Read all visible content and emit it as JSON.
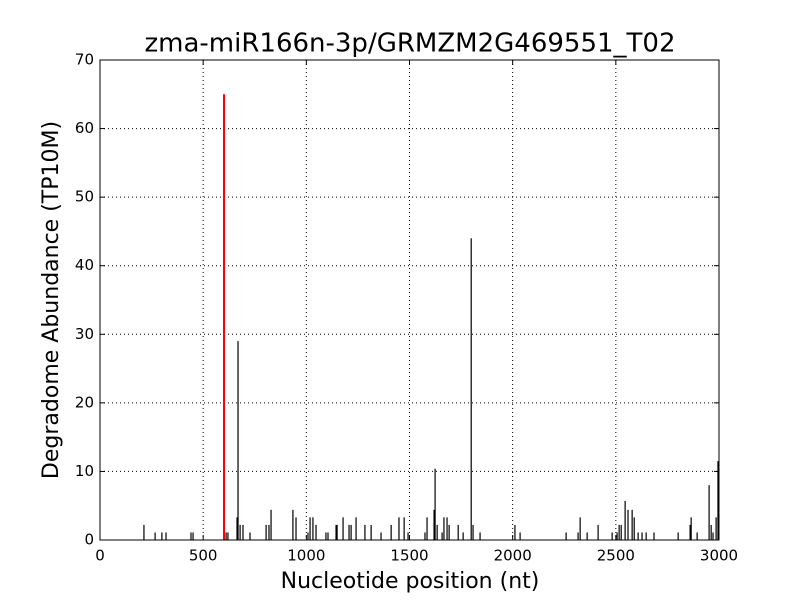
{
  "chart_data": {
    "type": "stem",
    "title": "zma-miR166n-3p/GRMZM2G469551_T02",
    "xlabel": "Nucleotide position (nt)",
    "ylabel": "Degradome Abundance (TP10M)",
    "xlim": [
      0,
      3000
    ],
    "xticks": [
      0,
      500,
      1000,
      1500,
      2000,
      2500,
      3000
    ],
    "ylim": [
      0,
      70
    ],
    "yticks": [
      0,
      10,
      20,
      30,
      40,
      50,
      60,
      70
    ],
    "grid": true,
    "series": [
      {
        "color": "#000000",
        "x": [
          213,
          267,
          300,
          320,
          441,
          451,
          611,
          620,
          664,
          669,
          679,
          693,
          727,
          805,
          819,
          829,
          935,
          950,
          1008,
          1018,
          1032,
          1047,
          1095,
          1105,
          1144,
          1149,
          1178,
          1207,
          1217,
          1241,
          1284,
          1314,
          1362,
          1411,
          1449,
          1474,
          1493,
          1575,
          1585,
          1619,
          1624,
          1634,
          1658,
          1667,
          1682,
          1692,
          1736,
          1760,
          1799,
          1808,
          1842,
          2011,
          2036,
          2259,
          2317,
          2327,
          2361,
          2414,
          2482,
          2506,
          2516,
          2526,
          2545,
          2559,
          2579,
          2589,
          2608,
          2627,
          2647,
          2685,
          2802,
          2860,
          2865,
          2894,
          2952,
          2962,
          2971,
          2986,
          2995
        ],
        "values": [
          2.2,
          1.1,
          1.1,
          1.1,
          1.1,
          1.1,
          1.1,
          1.1,
          3.3,
          29,
          2.2,
          2.2,
          1.1,
          2.2,
          2.2,
          4.4,
          4.4,
          3.3,
          1.1,
          3.3,
          3.3,
          2.2,
          1.1,
          1.1,
          2.2,
          2.2,
          3.3,
          2.2,
          2.2,
          3.3,
          2.2,
          2.2,
          1.1,
          2.2,
          3.3,
          3.3,
          1.1,
          1.1,
          3.3,
          4.4,
          10.4,
          2.2,
          1.1,
          3.3,
          3.3,
          2.2,
          2.2,
          1.1,
          44,
          2.2,
          1.1,
          2.2,
          1.1,
          1.1,
          1.1,
          3.3,
          1.1,
          2.2,
          1.1,
          1.1,
          2.2,
          2.2,
          5.7,
          4.4,
          4.4,
          3.3,
          1.1,
          1.1,
          1.1,
          1.1,
          1.1,
          2.2,
          3.3,
          1.1,
          8,
          2.2,
          1.1,
          3.3,
          11.5
        ]
      },
      {
        "color": "#ff0000",
        "x": [
          601
        ],
        "values": [
          65
        ]
      }
    ]
  }
}
